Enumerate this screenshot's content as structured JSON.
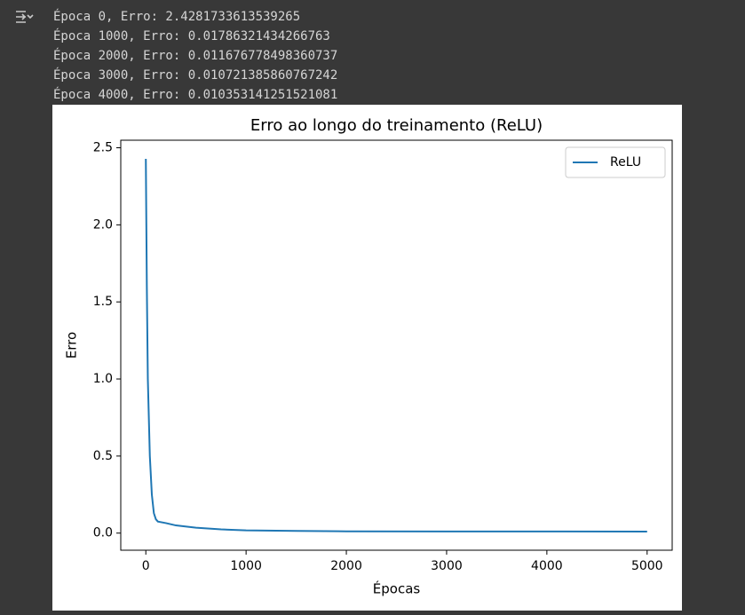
{
  "output_lines": [
    "Época 0, Erro: 2.4281733613539265",
    "Época 1000, Erro: 0.01786321434266763",
    "Época 2000, Erro: 0.011676778498360737",
    "Época 3000, Erro: 0.010721385860767242",
    "Época 4000, Erro: 0.010353141251521081"
  ],
  "chart_data": {
    "type": "line",
    "title": "Erro ao longo do treinamento (ReLU)",
    "xlabel": "Épocas",
    "ylabel": "Erro",
    "x": [
      0,
      10,
      20,
      40,
      60,
      80,
      100,
      120,
      200,
      300,
      500,
      750,
      1000,
      1500,
      2000,
      3000,
      4000,
      5000
    ],
    "series": [
      {
        "name": "ReLU",
        "color": "#1f77b4",
        "values": [
          2.428,
          1.6,
          1.0,
          0.5,
          0.25,
          0.13,
          0.09,
          0.075,
          0.065,
          0.05,
          0.035,
          0.024,
          0.0179,
          0.014,
          0.0117,
          0.0107,
          0.0104,
          0.0101
        ]
      }
    ],
    "xlim": [
      -250,
      5250
    ],
    "xticks": [
      0,
      1000,
      2000,
      3000,
      4000,
      5000
    ],
    "ylim": [
      -0.111,
      2.549
    ],
    "yticks": [
      {
        "value": 0,
        "label": "0.0"
      },
      0.5,
      {
        "value": 1,
        "label": "1.0"
      },
      1.5,
      {
        "value": 2,
        "label": "2.0"
      },
      2.5
    ],
    "legend": "upper right"
  }
}
